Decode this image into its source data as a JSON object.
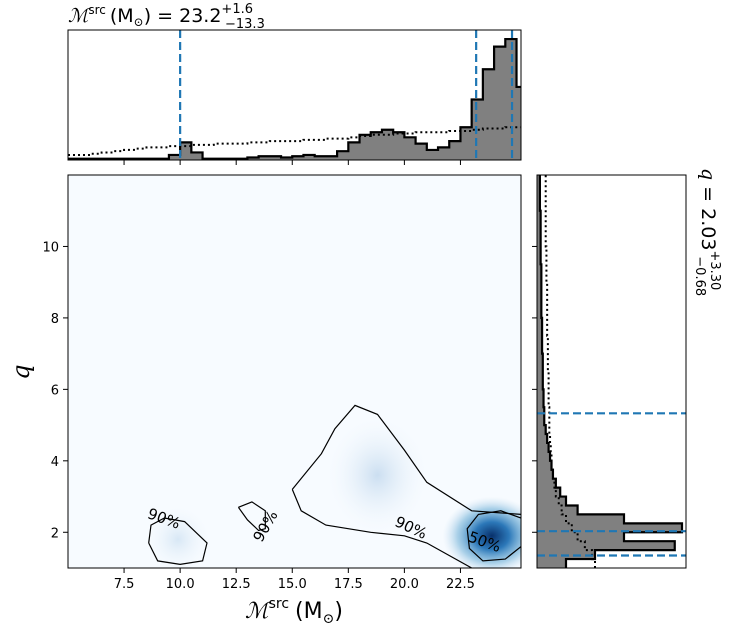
{
  "chart_data": [
    {
      "type": "heatmap",
      "panel": "joint",
      "xlabel_main": "ℳ",
      "xlabel_sup": "src",
      "xlabel_unit": "(M",
      "xlabel_unit_sub": "⊙",
      "xlabel_unit_close": ")",
      "ylabel": "q",
      "xlim": [
        5.0,
        25.2
      ],
      "ylim": [
        1.0,
        12.0
      ],
      "xticks": [
        "7.5",
        "10.0",
        "12.5",
        "15.0",
        "17.5",
        "20.0",
        "22.5"
      ],
      "xtick_values": [
        7.5,
        10.0,
        12.5,
        15.0,
        17.5,
        20.0,
        22.5
      ],
      "yticks": [
        "2",
        "4",
        "6",
        "8",
        "10"
      ],
      "ytick_values": [
        2,
        4,
        6,
        8,
        10
      ],
      "density_peaks": [
        {
          "x": 23.9,
          "y": 1.9,
          "weight": 1.0
        },
        {
          "x": 18.8,
          "y": 3.6,
          "weight": 0.12
        },
        {
          "x": 9.9,
          "y": 1.8,
          "weight": 0.08
        }
      ],
      "contours": [
        {
          "label": "90%",
          "points": [
            [
              8.6,
              1.7
            ],
            [
              8.7,
              2.2
            ],
            [
              9.3,
              2.4
            ],
            [
              10.2,
              2.3
            ],
            [
              11.2,
              1.7
            ],
            [
              11.0,
              1.2
            ],
            [
              10.0,
              1.1
            ],
            [
              9.0,
              1.2
            ],
            [
              8.6,
              1.7
            ]
          ]
        },
        {
          "label": "90%",
          "points": [
            [
              12.6,
              2.7
            ],
            [
              13.0,
              2.35
            ],
            [
              13.5,
              2.05
            ],
            [
              13.8,
              2.1
            ],
            [
              13.8,
              2.6
            ],
            [
              13.2,
              2.85
            ],
            [
              12.6,
              2.7
            ]
          ]
        },
        {
          "label": "90%",
          "points": [
            [
              15.0,
              3.2
            ],
            [
              16.3,
              4.2
            ],
            [
              16.9,
              4.9
            ],
            [
              17.8,
              5.55
            ],
            [
              18.8,
              5.3
            ],
            [
              20.0,
              4.3
            ],
            [
              21.0,
              3.4
            ],
            [
              23.0,
              2.6
            ],
            [
              25.2,
              2.5
            ]
          ]
        },
        {
          "label": "90%",
          "points": [
            [
              15.0,
              3.2
            ],
            [
              15.4,
              2.6
            ],
            [
              16.5,
              2.2
            ],
            [
              18.5,
              2.0
            ],
            [
              20.0,
              1.9
            ],
            [
              21.0,
              1.7
            ],
            [
              22.0,
              1.35
            ],
            [
              23.0,
              1.0
            ]
          ]
        },
        {
          "label": "50%",
          "points": [
            [
              25.2,
              2.4
            ],
            [
              24.3,
              2.6
            ],
            [
              23.3,
              2.5
            ],
            [
              22.8,
              2.1
            ],
            [
              22.9,
              1.55
            ],
            [
              23.5,
              1.2
            ],
            [
              24.5,
              1.25
            ],
            [
              25.2,
              1.6
            ]
          ]
        }
      ],
      "contour_labels": [
        {
          "text": "90%",
          "x": 9.2,
          "y": 2.25,
          "angle": 20
        },
        {
          "text": "90%",
          "x": 14.0,
          "y": 2.1,
          "angle": -60
        },
        {
          "text": "90%",
          "x": 20.2,
          "y": 2.0,
          "angle": 25
        },
        {
          "text": "50%",
          "x": 23.5,
          "y": 1.6,
          "angle": 20
        }
      ]
    },
    {
      "type": "area",
      "panel": "top-marginal",
      "title_main": "ℳ",
      "title_sup": "src",
      "title_unit": "(M",
      "title_unit_sub": "⊙",
      "title_unit_close": ")",
      "title_eq": "= 23.2",
      "title_plus": "+1.6",
      "title_minus": "−13.3",
      "xlim": [
        5.0,
        25.2
      ],
      "ylim": [
        0,
        1.0
      ],
      "posterior_bins_x": [
        5.0,
        5.5,
        6.0,
        6.5,
        7.0,
        7.5,
        8.0,
        8.5,
        9.0,
        9.5,
        10.0,
        10.5,
        11.0,
        11.5,
        12.0,
        12.5,
        13.0,
        13.5,
        14.0,
        14.5,
        15.0,
        15.5,
        16.0,
        16.5,
        17.0,
        17.5,
        18.0,
        18.5,
        19.0,
        19.5,
        20.0,
        20.5,
        21.0,
        21.5,
        22.0,
        22.5,
        23.0,
        23.5,
        24.0,
        24.5,
        25.0
      ],
      "posterior_heights": [
        0.01,
        0.01,
        0.01,
        0.01,
        0.01,
        0.01,
        0.01,
        0.01,
        0.01,
        0.04,
        0.14,
        0.06,
        0.01,
        0.01,
        0.01,
        0.01,
        0.02,
        0.03,
        0.03,
        0.02,
        0.03,
        0.04,
        0.03,
        0.03,
        0.07,
        0.14,
        0.2,
        0.22,
        0.24,
        0.22,
        0.18,
        0.13,
        0.08,
        0.1,
        0.15,
        0.26,
        0.48,
        0.72,
        0.9,
        0.96,
        0.58
      ],
      "prior_heights": [
        0.04,
        0.04,
        0.05,
        0.06,
        0.07,
        0.08,
        0.09,
        0.1,
        0.1,
        0.11,
        0.11,
        0.12,
        0.12,
        0.13,
        0.13,
        0.13,
        0.14,
        0.14,
        0.15,
        0.15,
        0.15,
        0.16,
        0.16,
        0.17,
        0.17,
        0.18,
        0.19,
        0.2,
        0.2,
        0.21,
        0.21,
        0.22,
        0.22,
        0.22,
        0.23,
        0.23,
        0.24,
        0.25,
        0.25,
        0.26,
        0.26
      ],
      "quantile_lines": [
        10.0,
        23.2,
        24.8
      ],
      "line_color": "#1f77b4",
      "fill_color": "#808080"
    },
    {
      "type": "area",
      "panel": "right-marginal",
      "title_main": "q",
      "title_eq": "= 2.03",
      "title_plus": "+3.30",
      "title_minus": "−0.68",
      "ylim": [
        1.0,
        12.0
      ],
      "xlim": [
        0,
        1.0
      ],
      "posterior_bins_q": [
        1.0,
        1.25,
        1.5,
        1.75,
        2.0,
        2.25,
        2.5,
        2.75,
        3.0,
        3.25,
        3.5,
        3.75,
        4.0,
        4.25,
        4.5,
        4.75,
        5.0,
        5.5,
        6.0,
        6.5,
        7.0,
        7.5,
        8.0,
        8.5,
        9.0,
        9.5,
        10.0,
        10.5,
        11.0,
        11.5,
        12.0
      ],
      "posterior_widths": [
        0.2,
        0.4,
        0.95,
        0.6,
        1.0,
        0.6,
        0.28,
        0.2,
        0.16,
        0.13,
        0.11,
        0.1,
        0.09,
        0.08,
        0.07,
        0.06,
        0.05,
        0.045,
        0.04,
        0.04,
        0.035,
        0.035,
        0.03,
        0.03,
        0.03,
        0.025,
        0.025,
        0.025,
        0.02,
        0.02,
        0.02
      ],
      "prior_widths": [
        0.4,
        0.38,
        0.33,
        0.28,
        0.24,
        0.2,
        0.17,
        0.15,
        0.13,
        0.12,
        0.11,
        0.1,
        0.1,
        0.095,
        0.09,
        0.085,
        0.085,
        0.08,
        0.08,
        0.075,
        0.075,
        0.07,
        0.07,
        0.07,
        0.065,
        0.065,
        0.06,
        0.06,
        0.06,
        0.06,
        0.06
      ],
      "quantile_lines": [
        1.35,
        2.03,
        5.33
      ],
      "line_color": "#1f77b4",
      "fill_color": "#808080"
    }
  ]
}
